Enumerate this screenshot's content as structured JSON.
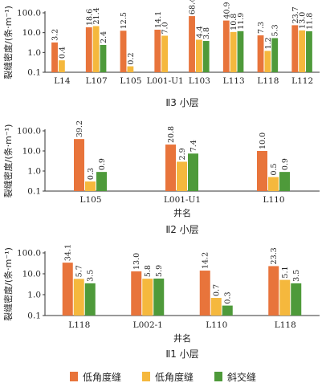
{
  "chart_data": [
    {
      "type": "bar",
      "title": "Ⅱ3 小层",
      "xlabel": "",
      "ylabel": "裂缝密度/(条·m⁻¹)",
      "yscale": "log",
      "ylim": [
        0.1,
        100
      ],
      "yticks": [
        "0.1",
        "1.0",
        "10.0",
        "100.0"
      ],
      "categories": [
        "L14",
        "L107",
        "L105",
        "L001-U1",
        "L103",
        "L113",
        "L118",
        "L112"
      ],
      "series": [
        {
          "name": "低角度缝",
          "values": [
            3.2,
            18.6,
            12.5,
            14.1,
            68.4,
            40.9,
            7.3,
            23.7
          ]
        },
        {
          "name": "低角度缝",
          "values": [
            0.4,
            21.4,
            0.2,
            7.0,
            4.4,
            10.8,
            1.2,
            13.0
          ]
        },
        {
          "name": "斜交缝",
          "values": [
            null,
            2.4,
            null,
            null,
            3.8,
            11.9,
            5.3,
            11.8
          ]
        }
      ]
    },
    {
      "type": "bar",
      "title": "Ⅱ2 小层",
      "xlabel": "井名",
      "ylabel": "裂缝密度/(条·m⁻¹)",
      "yscale": "log",
      "ylim": [
        0.1,
        100
      ],
      "yticks": [
        "0.1",
        "1.0",
        "10.0",
        "100.0"
      ],
      "categories": [
        "L105",
        "L001-U1",
        "L110"
      ],
      "series": [
        {
          "name": "低角度缝",
          "values": [
            39.2,
            20.8,
            10.0
          ]
        },
        {
          "name": "低角度缝",
          "values": [
            0.3,
            2.9,
            0.5
          ]
        },
        {
          "name": "斜交缝",
          "values": [
            0.9,
            7.4,
            0.9
          ]
        }
      ]
    },
    {
      "type": "bar",
      "title": "Ⅱ1 小层",
      "xlabel": "井名",
      "ylabel": "裂缝密度/(条·m⁻¹)",
      "yscale": "log",
      "ylim": [
        0.1,
        100
      ],
      "yticks": [
        "0.1",
        "1.0",
        "10.0",
        "100.0"
      ],
      "categories": [
        "L118",
        "L002-1",
        "L110",
        "L118"
      ],
      "series": [
        {
          "name": "低角度缝",
          "values": [
            34.1,
            13.0,
            14.2,
            23.3
          ]
        },
        {
          "name": "低角度缝",
          "values": [
            5.7,
            5.8,
            0.7,
            5.1
          ]
        },
        {
          "name": "斜交缝",
          "values": [
            3.5,
            5.9,
            0.3,
            3.5
          ]
        }
      ]
    }
  ],
  "legend": [
    {
      "label": "低角度缝",
      "color": "#E8743B"
    },
    {
      "label": "低角度缝",
      "color": "#F5B83D"
    },
    {
      "label": "斜交缝",
      "color": "#4E9A3A"
    }
  ]
}
